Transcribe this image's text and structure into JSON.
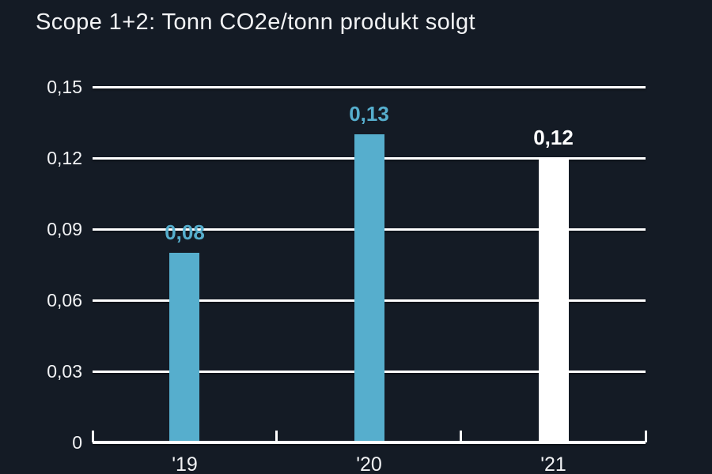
{
  "title": "Scope 1+2: Tonn CO2e/tonn produkt solgt",
  "colors": {
    "background": "#141b25",
    "bar_blue": "#56aecd",
    "bar_white": "#ffffff",
    "grid": "#ffffff",
    "text": "#f2f3f5"
  },
  "chart_data": {
    "type": "bar",
    "title": "Scope 1+2: Tonn CO2e/tonn produkt solgt",
    "categories": [
      "'19",
      "'20",
      "'21"
    ],
    "values": [
      0.08,
      0.13,
      0.12
    ],
    "value_labels": [
      "0,08",
      "0,13",
      "0,12"
    ],
    "bar_colors": [
      "#56aecd",
      "#56aecd",
      "#ffffff"
    ],
    "value_label_colors": [
      "#56aecd",
      "#56aecd",
      "#ffffff"
    ],
    "xlabel": "",
    "ylabel": "",
    "ylim": [
      0,
      0.15
    ],
    "yticks": [
      0,
      0.03,
      0.06,
      0.09,
      0.12,
      0.15
    ],
    "ytick_labels": [
      "0",
      "0,03",
      "0,06",
      "0,09",
      "0,12",
      "0,15"
    ],
    "grid": true,
    "legend": false,
    "decimal_separator": ","
  }
}
